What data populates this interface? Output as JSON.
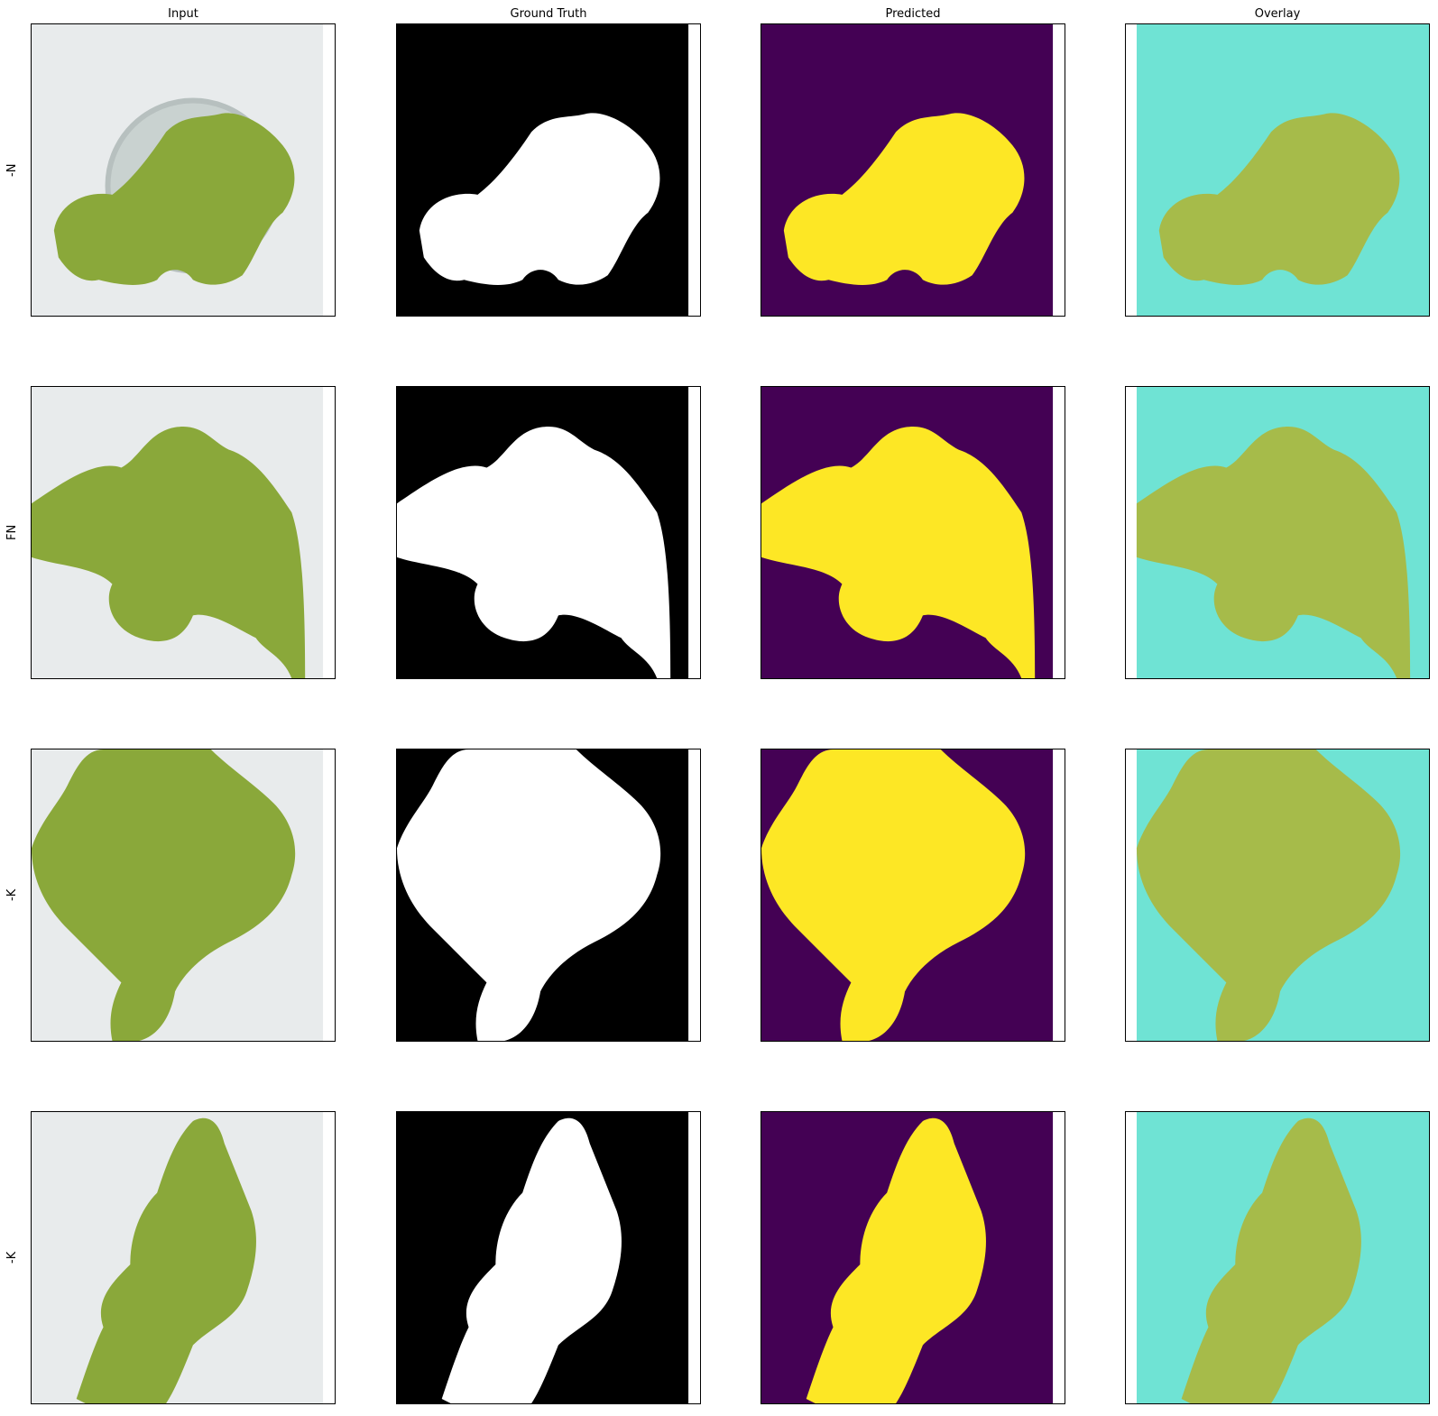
{
  "figure": {
    "columns": [
      {
        "title": "Input"
      },
      {
        "title": "Ground Truth"
      },
      {
        "title": "Predicted"
      },
      {
        "title": "Overlay"
      }
    ],
    "rows": [
      {
        "label": "-N"
      },
      {
        "label": "FN"
      },
      {
        "label": "-K"
      },
      {
        "label": "-K"
      }
    ],
    "colors": {
      "gt_background": "#000000",
      "gt_foreground": "#ffffff",
      "pred_background": "#440154",
      "pred_foreground": "#fde725",
      "overlay_tint": "#6fe3d4",
      "leaf_green": "#8aa83a",
      "foam_white": "#e8ebec"
    },
    "input_marking": "-N126"
  }
}
